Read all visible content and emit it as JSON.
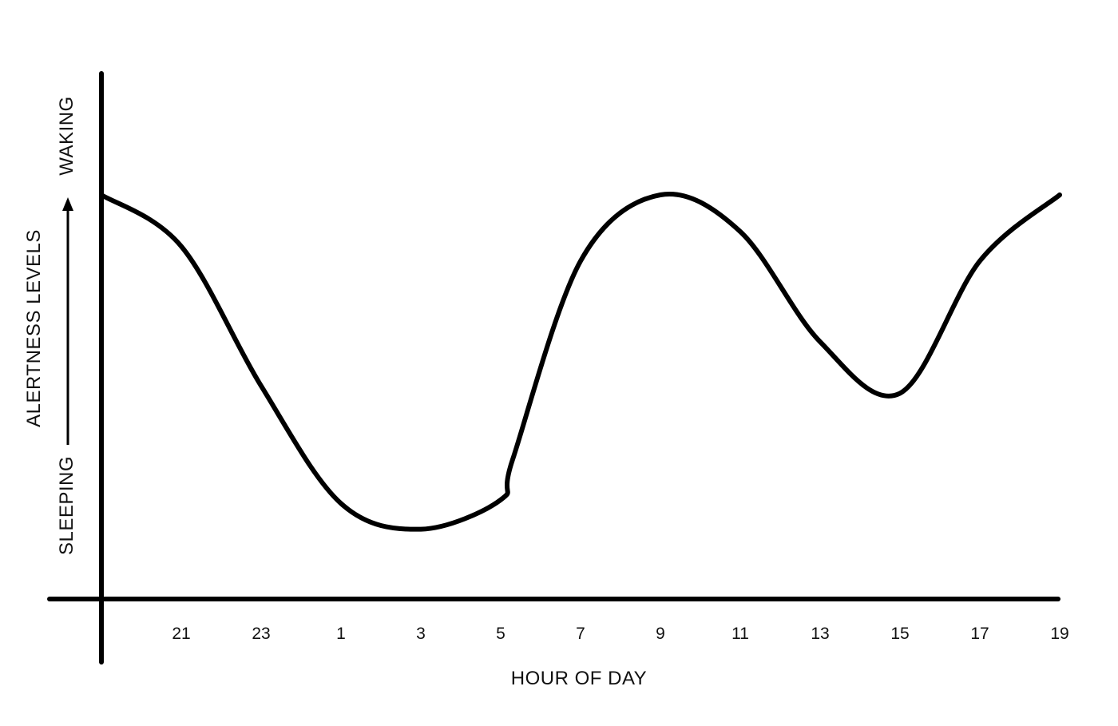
{
  "chart_data": {
    "type": "line",
    "title": "",
    "xlabel": "HOUR OF DAY",
    "ylabel": "ALERTNESS LEVELS",
    "y_low_label": "SLEEPING",
    "y_high_label": "WAKING",
    "x_tick_labels": [
      "21",
      "23",
      "1",
      "3",
      "5",
      "7",
      "9",
      "11",
      "13",
      "15",
      "17",
      "19"
    ],
    "ylim": [
      0,
      100
    ],
    "grid": false,
    "legend": "none",
    "colors": {
      "line": "#000000",
      "axis": "#000000",
      "text": "#111111"
    },
    "series": [
      {
        "x": [
          "19",
          "21",
          "23",
          "1",
          "3",
          "5",
          "5.3",
          "7",
          "9",
          "11",
          "13",
          "15",
          "17",
          "19"
        ],
        "values": [
          100,
          86,
          48,
          16,
          9,
          17,
          28,
          82,
          100,
          90,
          60,
          46,
          82,
          100
        ]
      }
    ]
  }
}
